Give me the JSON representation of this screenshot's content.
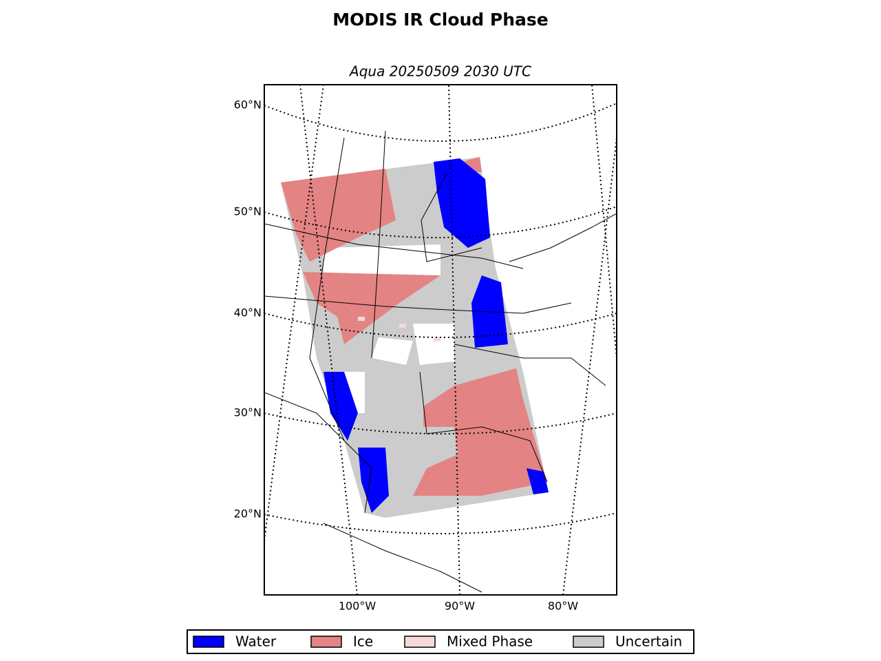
{
  "header": {
    "title": "MODIS IR Cloud Phase",
    "subtitle": "Aqua 20250509 2030 UTC"
  },
  "map": {
    "lat_labels": [
      "60°N",
      "50°N",
      "40°N",
      "30°N",
      "20°N"
    ],
    "lon_labels": [
      "100°W",
      "90°W",
      "80°W"
    ]
  },
  "legend": [
    {
      "label": "Water",
      "color": "#0000ff"
    },
    {
      "label": "Ice",
      "color": "#e38383"
    },
    {
      "label": "Mixed Phase",
      "color": "#f7d9d7"
    },
    {
      "label": "Uncertain",
      "color": "#cccccc"
    }
  ]
}
